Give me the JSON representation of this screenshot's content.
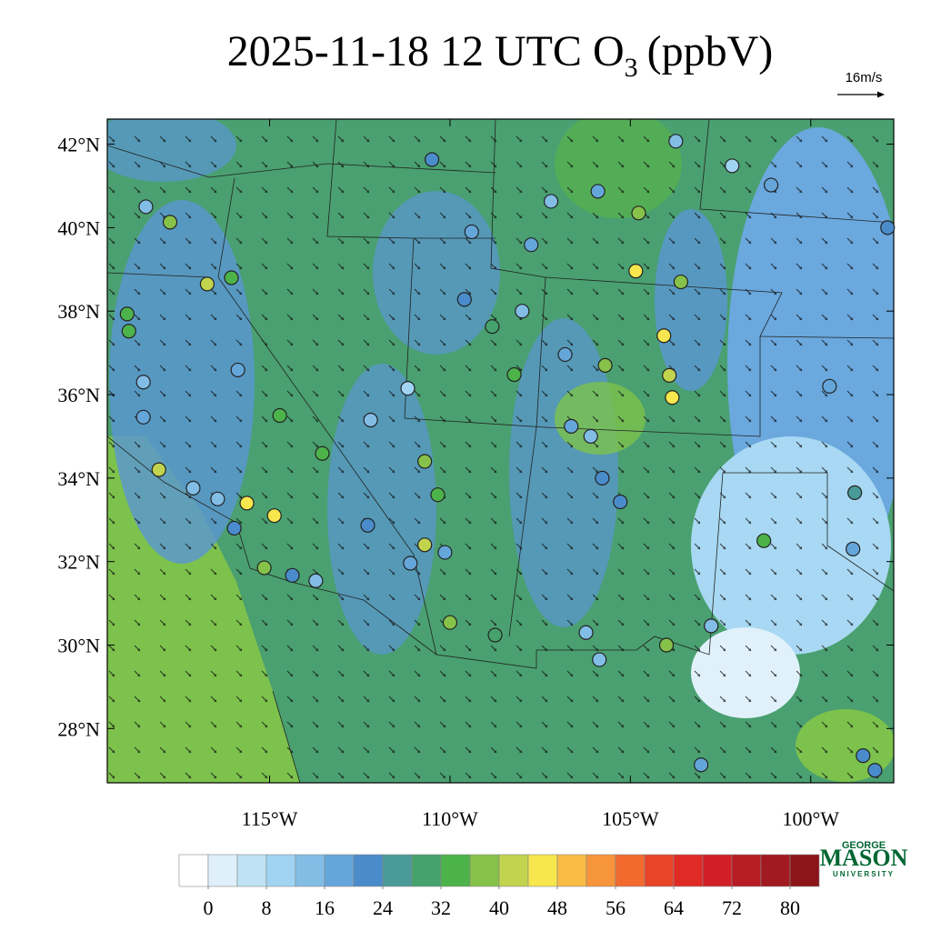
{
  "title": {
    "main": "2025-11-18 12 UTC O",
    "subscript": "3",
    "units": "(ppbV)"
  },
  "wind_key": {
    "label": "16m/s"
  },
  "map": {
    "xlim": [
      -119.5,
      -97.7
    ],
    "ylim": [
      26.7,
      42.6
    ],
    "lat_ticks": [
      {
        "value": 42,
        "label": "42°N"
      },
      {
        "value": 40,
        "label": "40°N"
      },
      {
        "value": 38,
        "label": "38°N"
      },
      {
        "value": 36,
        "label": "36°N"
      },
      {
        "value": 34,
        "label": "34°N"
      },
      {
        "value": 32,
        "label": "32°N"
      },
      {
        "value": 30,
        "label": "30°N"
      },
      {
        "value": 28,
        "label": "28°N"
      }
    ],
    "lon_ticks": [
      {
        "value": -115,
        "label": "115°W"
      },
      {
        "value": -110,
        "label": "110°W"
      },
      {
        "value": -105,
        "label": "105°W"
      },
      {
        "value": -100,
        "label": "100°W"
      }
    ],
    "stations": [
      [
        -104.85,
        38.96,
        46
      ],
      [
        -104.07,
        37.41,
        46
      ],
      [
        -103.84,
        35.93,
        44
      ],
      [
        -103.92,
        36.46,
        42
      ],
      [
        -103.6,
        38.7,
        38
      ],
      [
        -101.3,
        32.5,
        34
      ],
      [
        -104.0,
        30.0,
        36
      ],
      [
        -110.0,
        30.54,
        38
      ],
      [
        -110.7,
        32.4,
        40
      ],
      [
        -110.7,
        34.4,
        38
      ],
      [
        -110.34,
        33.6,
        34
      ],
      [
        -115.63,
        33.4,
        44
      ],
      [
        -114.87,
        33.1,
        44
      ],
      [
        -115.15,
        31.85,
        36
      ],
      [
        -117.76,
        40.13,
        36
      ],
      [
        -116.73,
        38.65,
        42
      ],
      [
        -116.06,
        38.8,
        34
      ],
      [
        -118.07,
        34.2,
        40
      ],
      [
        -118.95,
        37.93,
        32
      ],
      [
        -118.9,
        37.52,
        34
      ],
      [
        -114.72,
        35.5,
        34
      ],
      [
        -113.54,
        34.59,
        32
      ],
      [
        -108.22,
        36.48,
        32
      ],
      [
        -105.7,
        36.7,
        36
      ],
      [
        -104.77,
        40.35,
        36
      ],
      [
        -110.5,
        41.63,
        22
      ],
      [
        -109.4,
        39.9,
        18
      ],
      [
        -109.6,
        38.28,
        20
      ],
      [
        -107.75,
        39.59,
        18
      ],
      [
        -105.9,
        40.87,
        16
      ],
      [
        -103.74,
        42.07,
        14
      ],
      [
        -102.18,
        41.48,
        10
      ],
      [
        -101.1,
        41.02,
        18
      ],
      [
        -97.87,
        40.0,
        20
      ],
      [
        -99.48,
        36.2,
        18
      ],
      [
        -98.78,
        33.65,
        24
      ],
      [
        -98.83,
        32.3,
        18
      ],
      [
        -102.76,
        30.46,
        12
      ],
      [
        -106.23,
        30.3,
        12
      ],
      [
        -105.86,
        29.65,
        14
      ],
      [
        -103.04,
        27.13,
        16
      ],
      [
        -98.22,
        27.0,
        20
      ],
      [
        -98.55,
        27.35,
        22
      ],
      [
        -106.64,
        35.24,
        18
      ],
      [
        -106.1,
        35.0,
        12
      ],
      [
        -105.78,
        34.0,
        22
      ],
      [
        -105.28,
        33.43,
        20
      ],
      [
        -112.2,
        35.39,
        12
      ],
      [
        -111.17,
        36.15,
        10
      ],
      [
        -113.72,
        31.54,
        14
      ],
      [
        -114.37,
        31.67,
        20
      ],
      [
        -118.43,
        40.5,
        12
      ],
      [
        -115.88,
        36.59,
        18
      ],
      [
        -112.28,
        32.87,
        22
      ],
      [
        -118.5,
        36.3,
        14
      ],
      [
        -118.5,
        35.46,
        18
      ],
      [
        -117.12,
        33.76,
        12
      ],
      [
        -116.44,
        33.5,
        14
      ],
      [
        -115.98,
        32.8,
        22
      ],
      [
        -108.83,
        37.63,
        30
      ],
      [
        -108.75,
        30.24,
        30
      ],
      [
        -106.81,
        36.96,
        16
      ],
      [
        -108.0,
        38.0,
        14
      ],
      [
        -107.2,
        40.63,
        14
      ],
      [
        -110.14,
        32.22,
        16
      ],
      [
        -111.1,
        31.96,
        18
      ]
    ]
  },
  "colorbar": {
    "lim": [
      -4,
      84
    ],
    "colors": [
      "#ffffff",
      "#dff0fa",
      "#bfe3f5",
      "#a0d4f2",
      "#82bde6",
      "#65a6da",
      "#4a8ccb",
      "#4a9a9a",
      "#45a26c",
      "#4cb34a",
      "#86c24a",
      "#c2d44e",
      "#f7e64d",
      "#f9bc45",
      "#f7953a",
      "#f26a2e",
      "#e84428",
      "#e02a26",
      "#d21f27",
      "#b71c24",
      "#a11a20",
      "#8c1519"
    ],
    "ticks": [
      0,
      8,
      16,
      24,
      32,
      40,
      48,
      56,
      64,
      72,
      80
    ]
  },
  "logo": {
    "top": "GEORGE",
    "main": "MASON",
    "bottom": "UNIVERSITY"
  }
}
